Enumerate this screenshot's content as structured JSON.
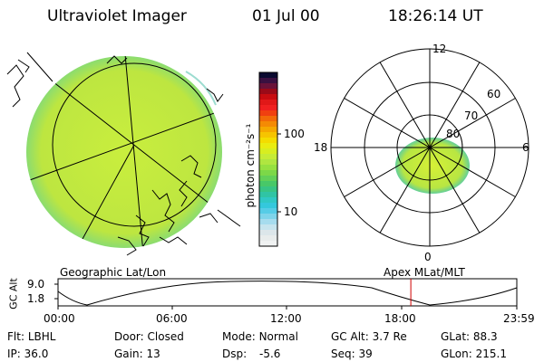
{
  "header": {
    "instrument": "Ultraviolet Imager",
    "date": "01 Jul 00",
    "time": "18:26:14 UT"
  },
  "left_panel": {
    "caption": "Geographic Lat/Lon"
  },
  "right_panel": {
    "caption": "Apex MLat/MLT",
    "mlt_labels": [
      "12",
      "18",
      "6",
      "0"
    ],
    "lat_labels": [
      "60",
      "70",
      "80"
    ]
  },
  "colorbar": {
    "unit": "photon cm⁻²s⁻¹",
    "ticks": [
      "100",
      "10"
    ],
    "scale": "log"
  },
  "timeline": {
    "ylabel": "GC Alt",
    "yticks": [
      "9.0",
      "1.8"
    ],
    "xticks": [
      "00:00",
      "06:00",
      "12:00",
      "18:00",
      "23:59"
    ],
    "current_time_fraction": 0.769,
    "marker_color": "#d00000"
  },
  "footer": {
    "rows": [
      [
        {
          "label": "Flt:",
          "value": "LBHL"
        },
        {
          "label": "Door:",
          "value": "Closed"
        },
        {
          "label": "Mode:",
          "value": "Normal"
        },
        {
          "label": "GC Alt:",
          "value": "3.7 Re"
        },
        {
          "label": "GLat:",
          "value": "88.3"
        }
      ],
      [
        {
          "label": "IP:",
          "value": "36.0"
        },
        {
          "label": "Gain:",
          "value": "13"
        },
        {
          "label": "Dsp:",
          "value": "-5.6"
        },
        {
          "label": "Seq:",
          "value": "39"
        },
        {
          "label": "GLon:",
          "value": "215.1"
        }
      ]
    ]
  },
  "colors": {
    "image_fill": "#c8ec3c",
    "image_edge": "#7fdc7a",
    "oval_fill": "#c4ea3a"
  }
}
